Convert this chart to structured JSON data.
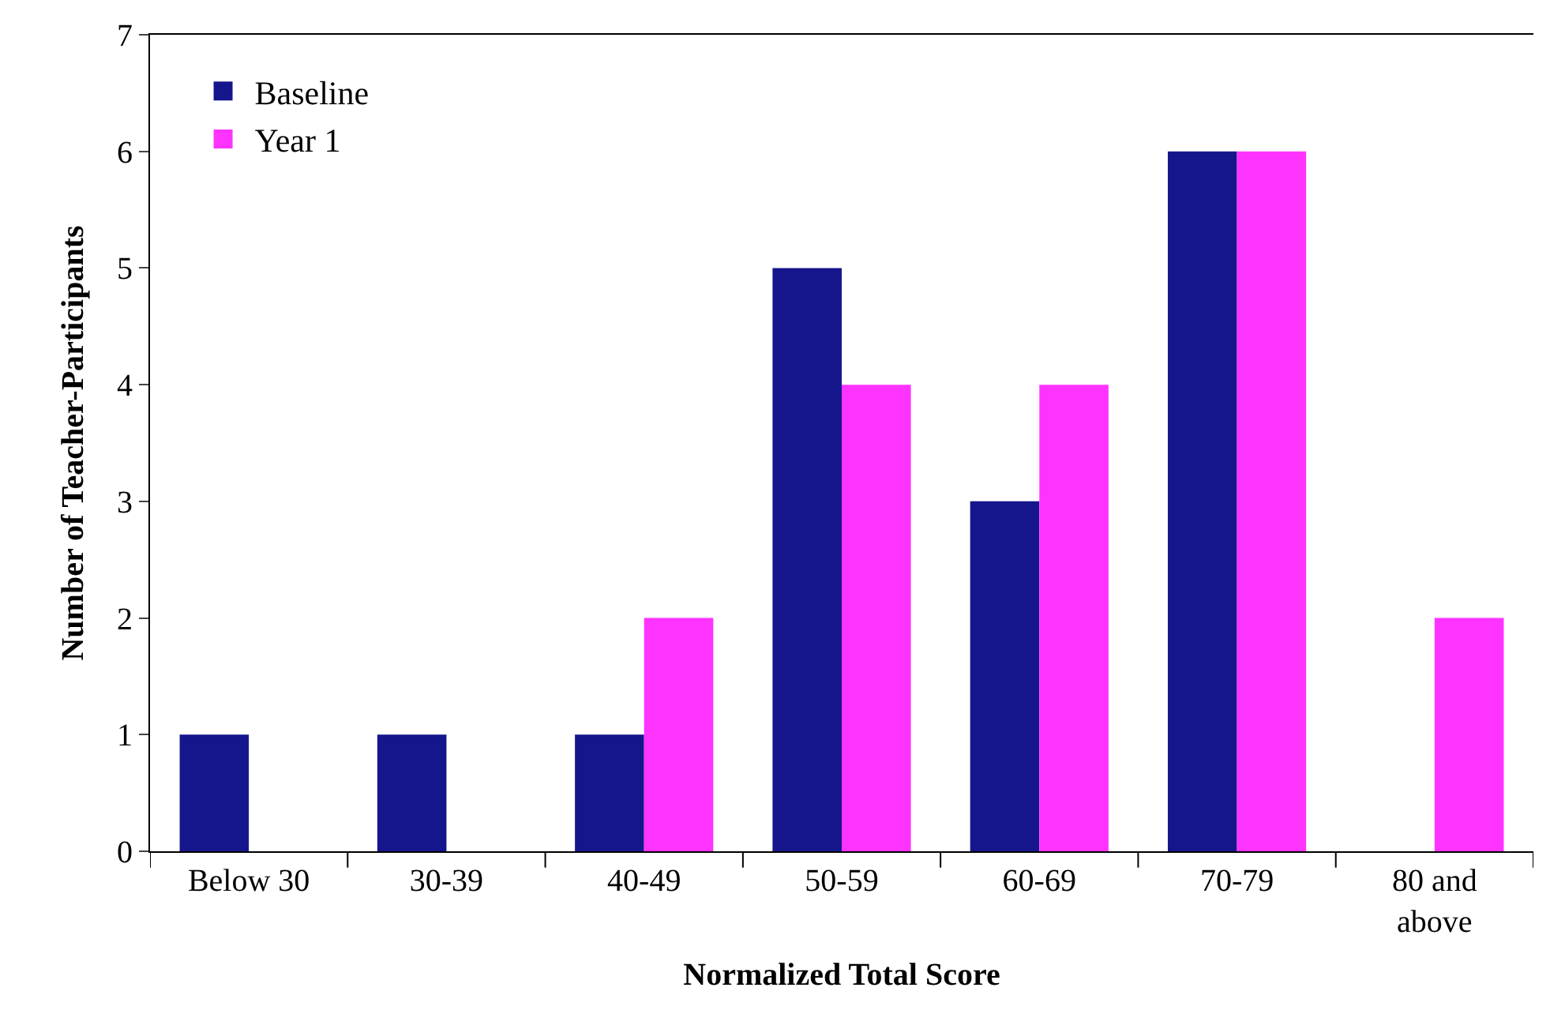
{
  "chart_data": {
    "type": "bar",
    "xlabel": "Normalized Total Score",
    "ylabel": "Number of Teacher-Participants",
    "categories": [
      "Below 30",
      "30-39",
      "40-49",
      "50-59",
      "60-69",
      "70-79",
      "80 and above"
    ],
    "series": [
      {
        "name": "Baseline",
        "color": "#16168c",
        "values": [
          1,
          1,
          1,
          5,
          3,
          6,
          0
        ]
      },
      {
        "name": "Year 1",
        "color": "#ff33ff",
        "values": [
          0,
          0,
          2,
          4,
          4,
          6,
          2
        ]
      }
    ],
    "ylim": [
      0,
      7
    ],
    "yticks": [
      0,
      1,
      2,
      3,
      4,
      5,
      6,
      7
    ],
    "legend": "top left"
  }
}
